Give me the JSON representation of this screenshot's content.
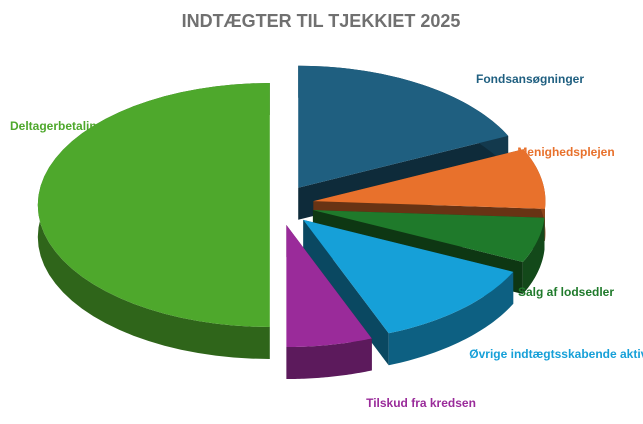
{
  "chart_data": {
    "type": "pie",
    "title": "INDTÆGTER TIL TJEKKIET 2025",
    "categories": [
      "Fondsansøgninger",
      "Menighedsplejen",
      "Salg af lodsedler",
      "Øvrige indtægtsskabende aktiviteter",
      "Tilskud fra kredsen",
      "Deltagerbetaling"
    ],
    "values": [
      18,
      8,
      6,
      12,
      6,
      50
    ],
    "colors": [
      "#1f5f80",
      "#e8712c",
      "#1f7a2b",
      "#16a0d8",
      "#9a2b9a",
      "#4ea82c"
    ]
  }
}
